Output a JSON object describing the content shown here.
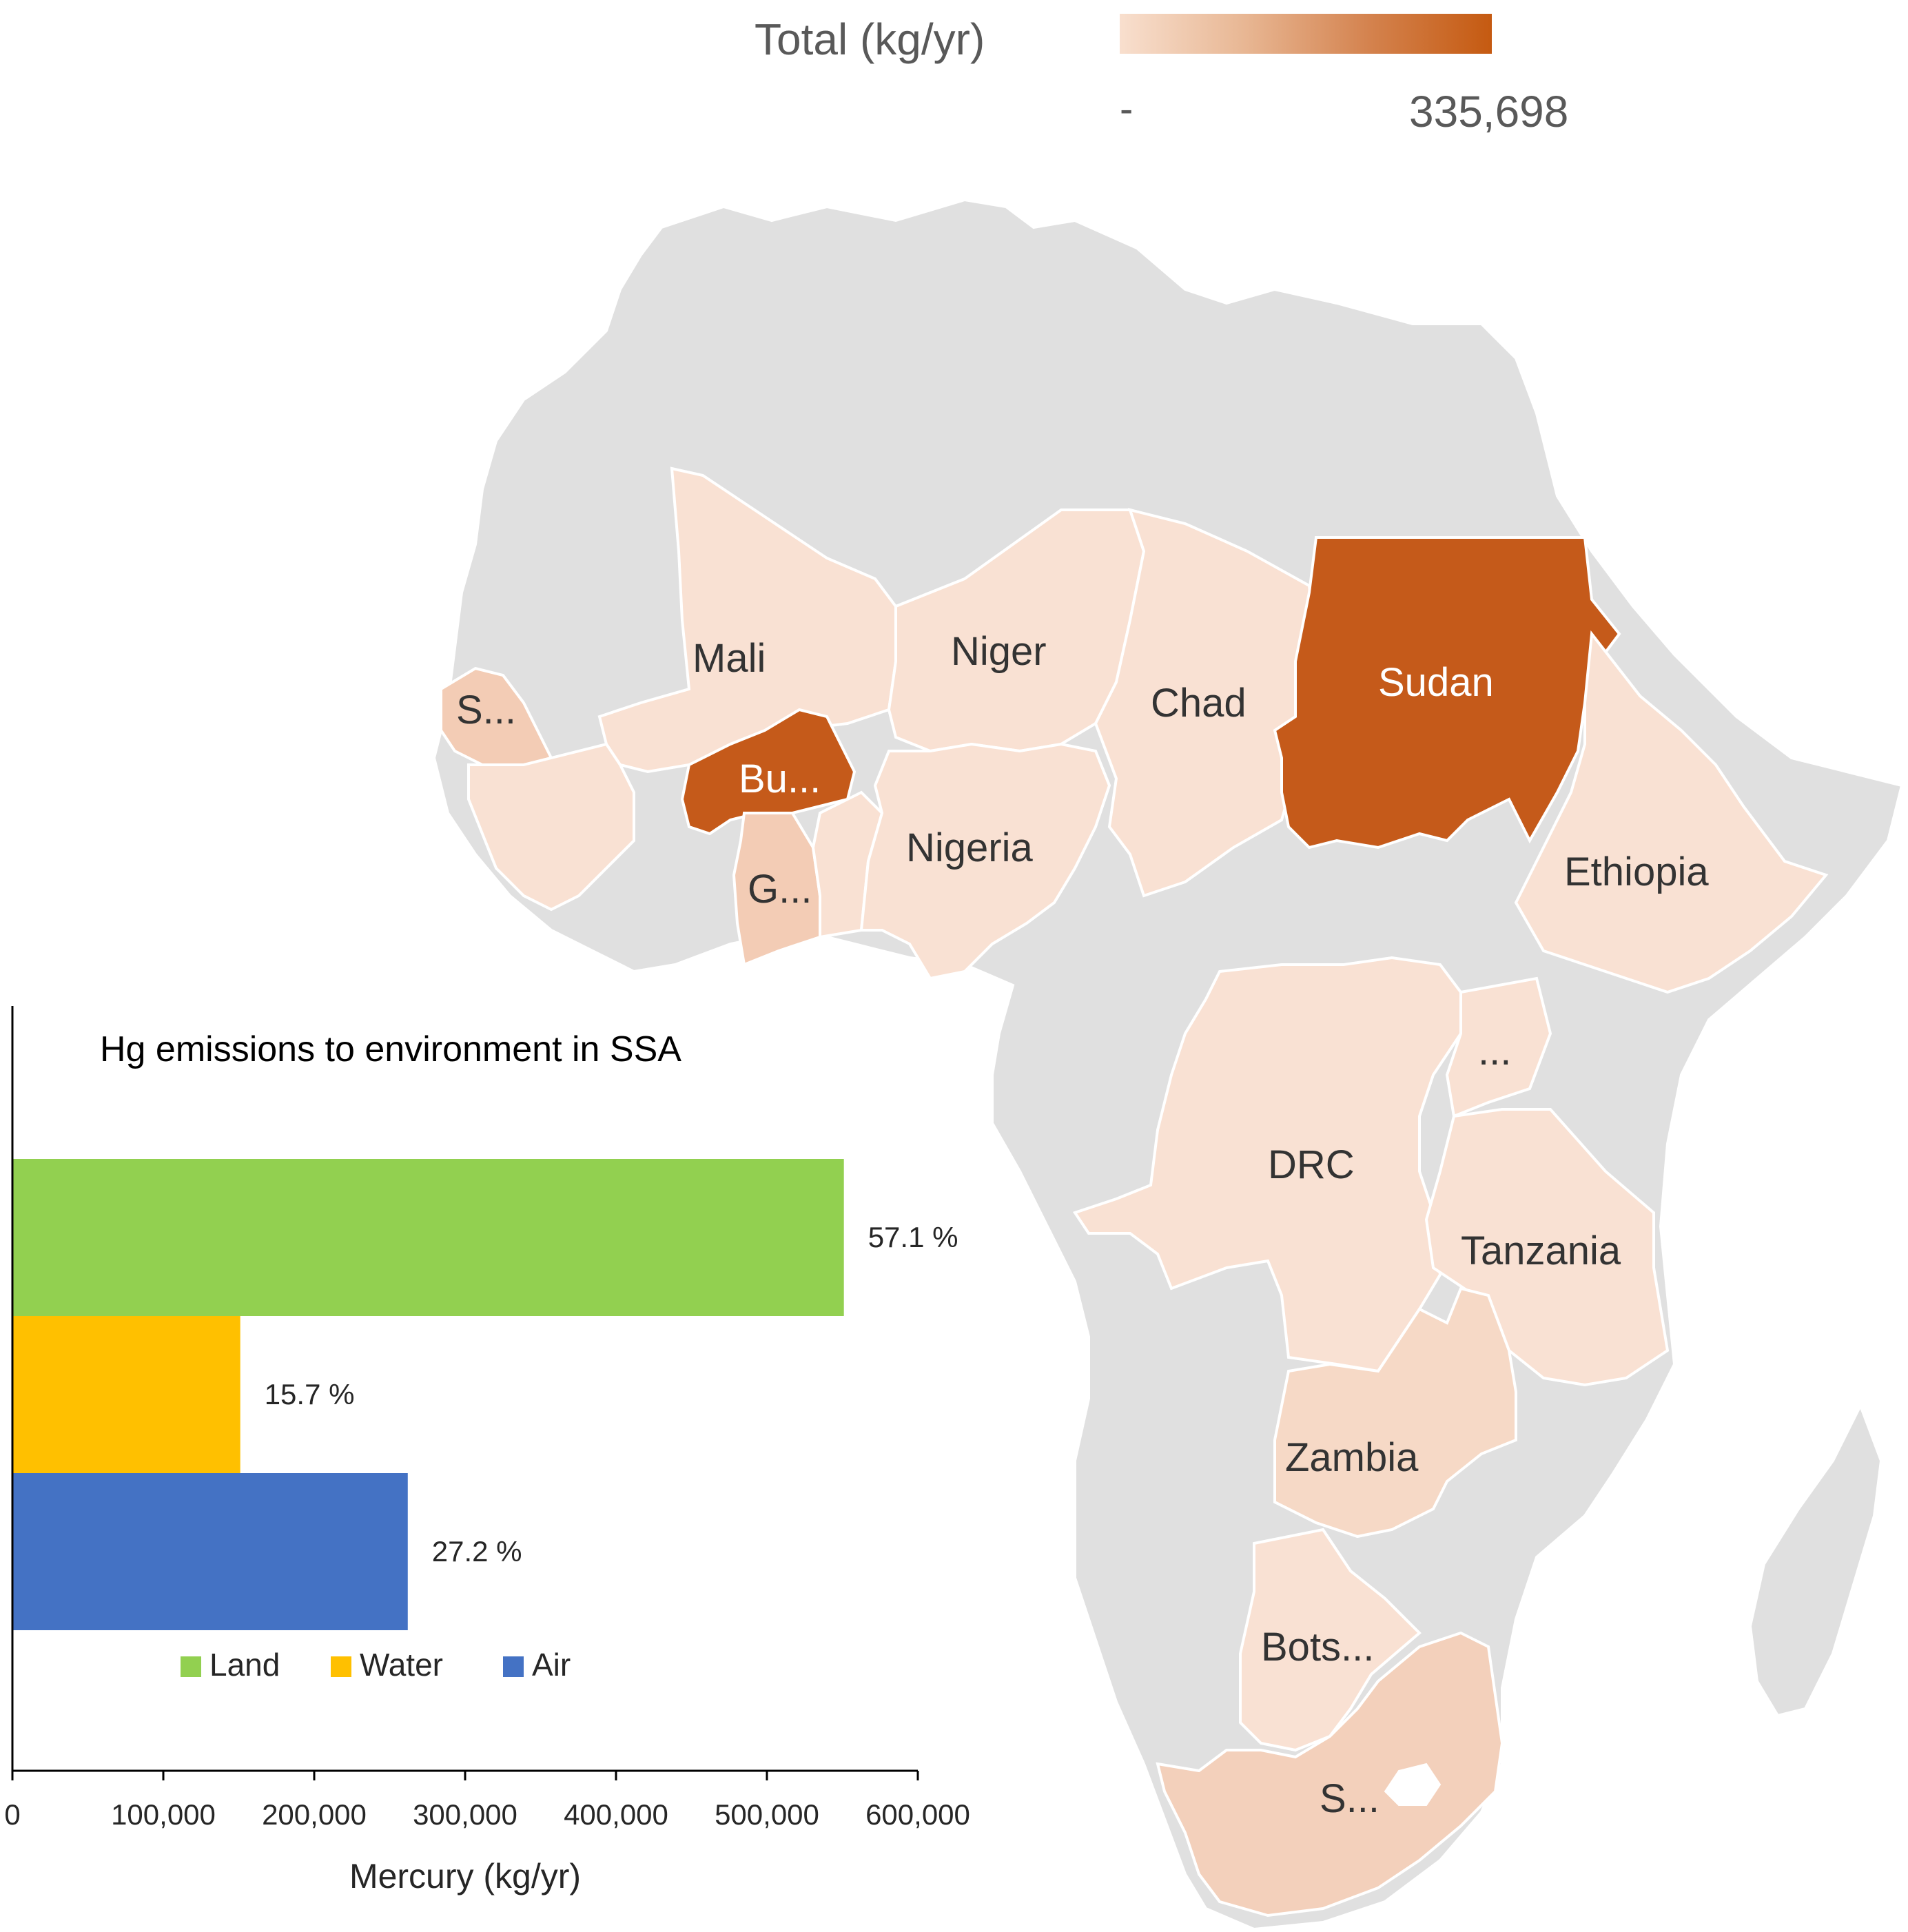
{
  "legend": {
    "title": "Total (kg/yr)",
    "min_label": "-",
    "max_label": "335,698",
    "max_value": 335698,
    "colors": [
      "#f8dfce",
      "#c55a11"
    ]
  },
  "map": {
    "land_color": "#e0e0e0",
    "country_labels": [
      {
        "key": "mali",
        "label": "Mali",
        "fill": "#f9e1d3"
      },
      {
        "key": "niger",
        "label": "Niger",
        "fill": "#f9e1d3"
      },
      {
        "key": "chad",
        "label": "Chad",
        "fill": "#f9e1d3"
      },
      {
        "key": "sudan",
        "label": "Sudan",
        "fill": "#c55a1a"
      },
      {
        "key": "senegal",
        "label": "S...",
        "fill": "#f3ccb5"
      },
      {
        "key": "burkina",
        "label": "Bu...",
        "fill": "#c55a1a"
      },
      {
        "key": "ghana",
        "label": "G...",
        "fill": "#f3ccb5"
      },
      {
        "key": "nigeria",
        "label": "Nigeria",
        "fill": "#f9e1d3"
      },
      {
        "key": "ethiopia",
        "label": "Ethiopia",
        "fill": "#f9e1d3"
      },
      {
        "key": "uganda",
        "label": "...",
        "fill": "#f9e1d3"
      },
      {
        "key": "drc",
        "label": "DRC",
        "fill": "#f9e1d3"
      },
      {
        "key": "tanzania",
        "label": "Tanzania",
        "fill": "#f9e1d3"
      },
      {
        "key": "zambia",
        "label": "Zambia",
        "fill": "#f6d9c6"
      },
      {
        "key": "botswana",
        "label": "Bots...",
        "fill": "#f9e1d3"
      },
      {
        "key": "southafrica",
        "label": "S...",
        "fill": "#f3d0bb"
      }
    ]
  },
  "chart_data": {
    "type": "bar",
    "orientation": "horizontal",
    "title": "Hg emissions to environment in SSA",
    "xlabel": "Mercury (kg/yr)",
    "ylabel": "",
    "xlim": [
      0,
      600000
    ],
    "x_ticks": [
      0,
      100000,
      200000,
      300000,
      400000,
      500000,
      600000
    ],
    "x_tick_labels": [
      "0",
      "100,000",
      "200,000",
      "300,000",
      "400,000",
      "500,000",
      "600,000"
    ],
    "grid": false,
    "legend_position": "bottom",
    "series": [
      {
        "name": "Land",
        "value": 551000,
        "label": "57.1 %",
        "color": "#92d050"
      },
      {
        "name": "Water",
        "value": 151000,
        "label": "15.7 %",
        "color": "#ffc000"
      },
      {
        "name": "Air",
        "value": 262000,
        "label": "27.2 %",
        "color": "#4472c4"
      }
    ]
  }
}
